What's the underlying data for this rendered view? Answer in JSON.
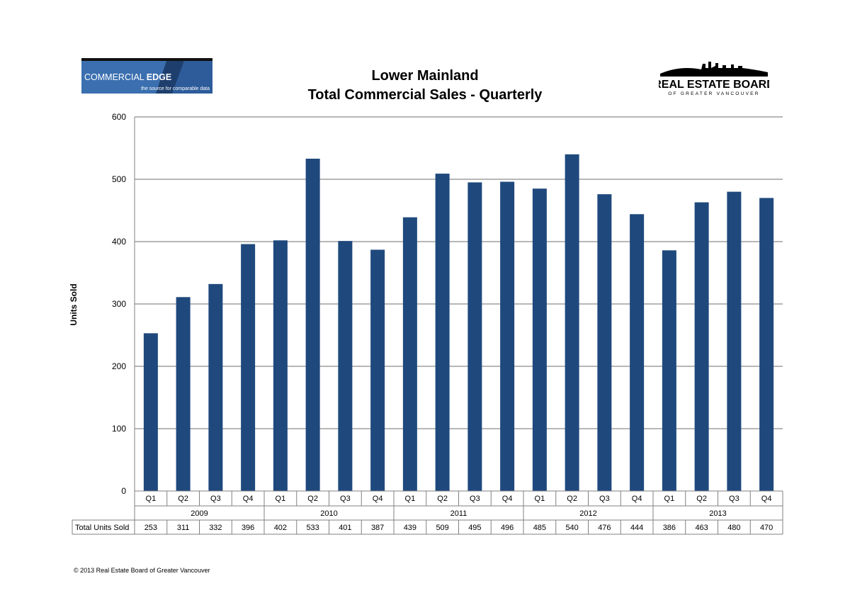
{
  "logos": {
    "commercial_edge": {
      "name": "COMMERCIAL",
      "name_bold": "EDGE",
      "tagline": "the source for comparable data"
    },
    "rebgv": {
      "name": "REAL ESTATE BOARD",
      "tagline": "OF GREATER VANCOUVER"
    }
  },
  "chart_data": {
    "type": "bar",
    "title": "Lower Mainland",
    "subtitle": "Total Commercial Sales - Quarterly",
    "xlabel": "",
    "ylabel": "Units Sold",
    "ylim": [
      0,
      600
    ],
    "yticks": [
      0,
      100,
      200,
      300,
      400,
      500,
      600
    ],
    "grid": true,
    "color": "#1F497D",
    "years": [
      "2009",
      "2010",
      "2011",
      "2012",
      "2013"
    ],
    "quarters": [
      "Q1",
      "Q2",
      "Q3",
      "Q4"
    ],
    "categories": [
      "Q1",
      "Q2",
      "Q3",
      "Q4",
      "Q1",
      "Q2",
      "Q3",
      "Q4",
      "Q1",
      "Q2",
      "Q3",
      "Q4",
      "Q1",
      "Q2",
      "Q3",
      "Q4",
      "Q1",
      "Q2",
      "Q3",
      "Q4"
    ],
    "series": [
      {
        "name": "Total Units Sold",
        "values": [
          253,
          311,
          332,
          396,
          402,
          533,
          401,
          387,
          439,
          509,
          495,
          496,
          485,
          540,
          476,
          444,
          386,
          463,
          480,
          470
        ]
      }
    ]
  },
  "footer": "© 2013 Real Estate Board of Greater Vancouver"
}
